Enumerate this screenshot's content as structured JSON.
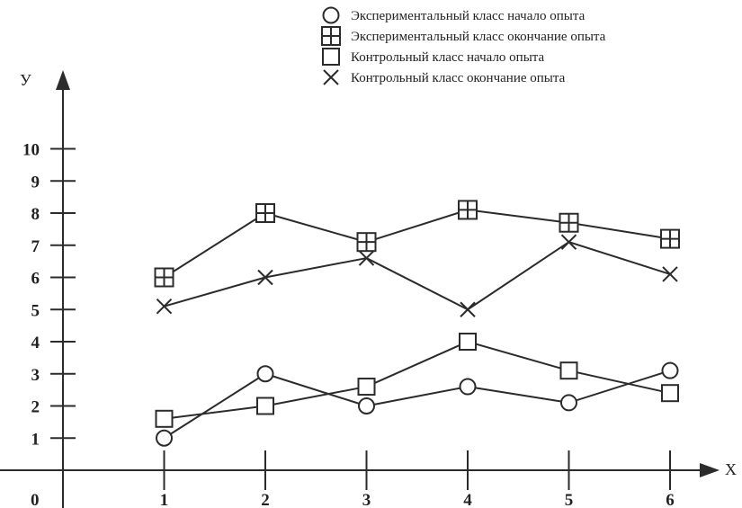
{
  "chart_data": {
    "type": "line",
    "title": "",
    "xlabel": "X",
    "ylabel": "У",
    "origin_label": "0",
    "x": [
      1,
      2,
      3,
      4,
      5,
      6
    ],
    "x_tick_labels": [
      "1",
      "2",
      "3",
      "4",
      "5",
      "6"
    ],
    "y_ticks": [
      1,
      2,
      3,
      4,
      5,
      6,
      7,
      8,
      9,
      10
    ],
    "y_tick_labels": [
      "1",
      "2",
      "3",
      "4",
      "5",
      "6",
      "7",
      "8",
      "9",
      "10"
    ],
    "xlim": [
      0,
      6
    ],
    "ylim": [
      0,
      11
    ],
    "grid": false,
    "legend_position": "top-right",
    "series": [
      {
        "name": "Экспериментальный класс начало опыта",
        "marker": "circle",
        "values": [
          1.0,
          3.0,
          2.0,
          2.6,
          2.1,
          3.1
        ]
      },
      {
        "name": "Экспериментальный класс окончание опыта",
        "marker": "boxed-plus",
        "values": [
          6.0,
          8.0,
          7.1,
          8.1,
          7.7,
          7.2
        ]
      },
      {
        "name": "Контрольный класс начало опыта",
        "marker": "square",
        "values": [
          1.6,
          2.0,
          2.6,
          4.0,
          3.1,
          2.4
        ]
      },
      {
        "name": "Контрольный класс окончание опыта",
        "marker": "cross",
        "values": [
          5.1,
          6.0,
          6.6,
          5.0,
          7.1,
          6.1
        ]
      }
    ]
  }
}
